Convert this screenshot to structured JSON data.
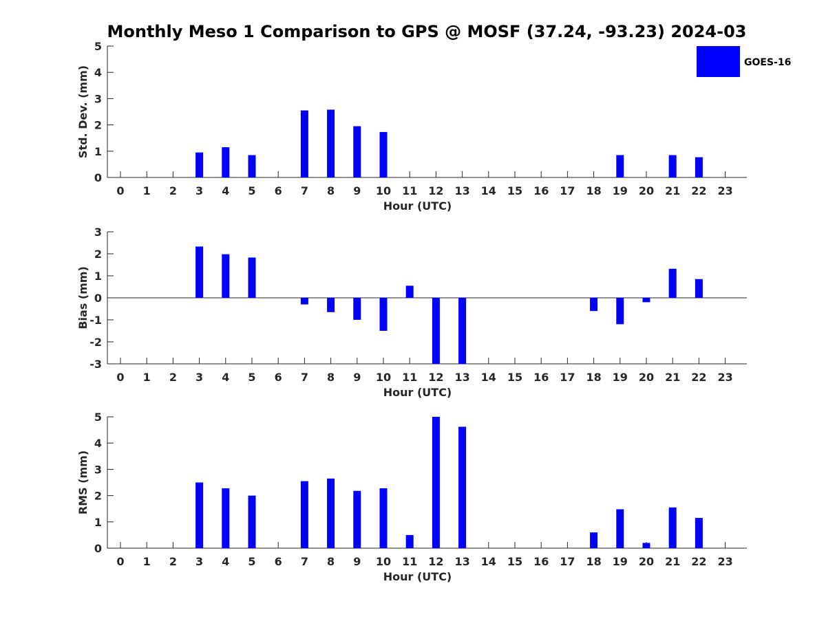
{
  "figure": {
    "title": "Monthly Meso 1 Comparison to GPS @ MOSF (37.24, -93.23) 2024-03"
  },
  "legend": {
    "label": "GOES-16",
    "color": "#0000ff",
    "placement": "top-right"
  },
  "chart_data": [
    {
      "type": "bar",
      "title": "Monthly Meso 1 Comparison to GPS @ MOSF (37.24, -93.23) 2024-03",
      "xlabel": "Hour (UTC)",
      "ylabel": "Std. Dev. (mm)",
      "ylim": [
        0,
        5
      ],
      "yticks": [
        0,
        1,
        2,
        3,
        4,
        5
      ],
      "categories": [
        "0",
        "1",
        "2",
        "3",
        "4",
        "5",
        "6",
        "7",
        "8",
        "9",
        "10",
        "11",
        "12",
        "13",
        "14",
        "15",
        "16",
        "17",
        "18",
        "19",
        "20",
        "21",
        "22",
        "23"
      ],
      "series": [
        {
          "name": "GOES-16",
          "color": "#0000ff",
          "values": [
            0,
            0,
            0,
            0.95,
            1.15,
            0.85,
            0,
            2.55,
            2.58,
            1.95,
            1.73,
            0,
            0,
            0,
            0,
            0,
            0,
            0,
            0,
            0.85,
            0,
            0.85,
            0.77,
            0
          ]
        }
      ]
    },
    {
      "type": "bar",
      "xlabel": "Hour (UTC)",
      "ylabel": "Bias (mm)",
      "ylim": [
        -3,
        3
      ],
      "yticks": [
        -3,
        -2,
        -1,
        0,
        1,
        2,
        3
      ],
      "categories": [
        "0",
        "1",
        "2",
        "3",
        "4",
        "5",
        "6",
        "7",
        "8",
        "9",
        "10",
        "11",
        "12",
        "13",
        "14",
        "15",
        "16",
        "17",
        "18",
        "19",
        "20",
        "21",
        "22",
        "23"
      ],
      "series": [
        {
          "name": "GOES-16",
          "color": "#0000ff",
          "values": [
            0,
            0,
            0,
            2.33,
            1.98,
            1.83,
            0,
            -0.3,
            -0.65,
            -1.0,
            -1.5,
            0.55,
            -3.0,
            -3.0,
            0,
            0,
            0,
            0,
            -0.6,
            -1.2,
            -0.2,
            1.32,
            0.85,
            0
          ]
        }
      ]
    },
    {
      "type": "bar",
      "xlabel": "Hour (UTC)",
      "ylabel": "RMS (mm)",
      "ylim": [
        0,
        5
      ],
      "yticks": [
        0,
        1,
        2,
        3,
        4,
        5
      ],
      "categories": [
        "0",
        "1",
        "2",
        "3",
        "4",
        "5",
        "6",
        "7",
        "8",
        "9",
        "10",
        "11",
        "12",
        "13",
        "14",
        "15",
        "16",
        "17",
        "18",
        "19",
        "20",
        "21",
        "22",
        "23"
      ],
      "series": [
        {
          "name": "GOES-16",
          "color": "#0000ff",
          "values": [
            0,
            0,
            0,
            2.5,
            2.28,
            2.0,
            0,
            2.55,
            2.65,
            2.18,
            2.28,
            0.5,
            5.0,
            4.62,
            0,
            0,
            0,
            0,
            0.6,
            1.48,
            0.2,
            1.55,
            1.15,
            0
          ]
        }
      ]
    }
  ]
}
